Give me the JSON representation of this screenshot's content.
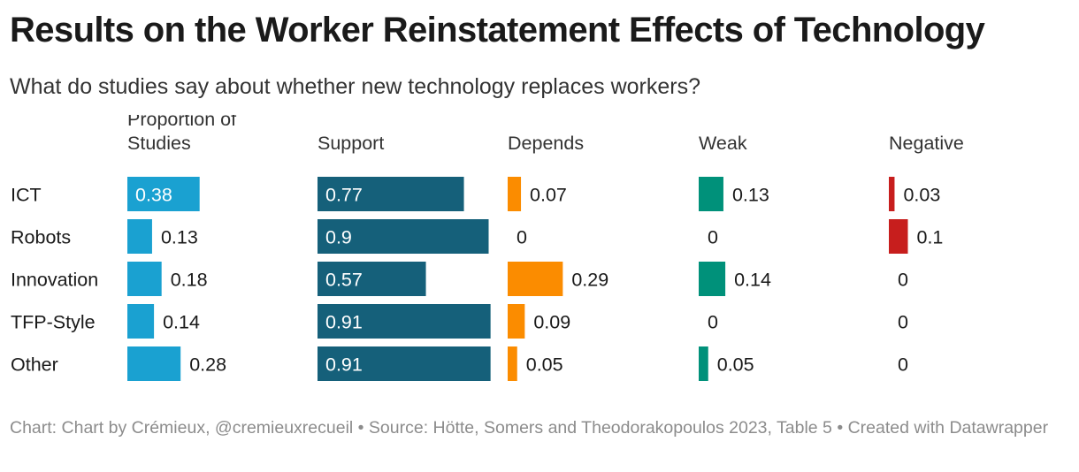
{
  "title": "Results on the Worker Reinstatement Effects of Technology",
  "subtitle": "What do studies say about whether new technology replaces workers?",
  "footer": {
    "chart_credit": "Chart: Chart by Crémieux, @cremieuxrecueil",
    "separator": "•",
    "source": "Source: Hötte, Somers and Theodorakopoulos 2023, Table 5",
    "created_with": "Created with Datawrapper"
  },
  "chart_data": {
    "type": "bar",
    "orientation": "horizontal",
    "layout": "small-multiples",
    "categories": [
      "ICT",
      "Robots",
      "Innovation",
      "TFP-Style",
      "Other"
    ],
    "series": [
      {
        "name": "Proportion of Studies",
        "name_lines": [
          "Proportion of",
          "Studies"
        ],
        "color": "#1aa1d1",
        "values": [
          0.38,
          0.13,
          0.18,
          0.14,
          0.28
        ]
      },
      {
        "name": "Support",
        "name_lines": [
          "Support"
        ],
        "color": "#15607a",
        "values": [
          0.77,
          0.9,
          0.57,
          0.91,
          0.91
        ]
      },
      {
        "name": "Depends",
        "name_lines": [
          "Depends"
        ],
        "color": "#fb8c00",
        "values": [
          0.07,
          0,
          0.29,
          0.09,
          0.05
        ]
      },
      {
        "name": "Weak",
        "name_lines": [
          "Weak"
        ],
        "color": "#00917a",
        "values": [
          0.13,
          0,
          0.14,
          0,
          0.05
        ]
      },
      {
        "name": "Negative",
        "name_lines": [
          "Negative"
        ],
        "color": "#c71e1d",
        "values": [
          0.03,
          0.1,
          0,
          0,
          0
        ]
      }
    ],
    "xlim": [
      0,
      1
    ],
    "grid": false,
    "legend": "none"
  }
}
